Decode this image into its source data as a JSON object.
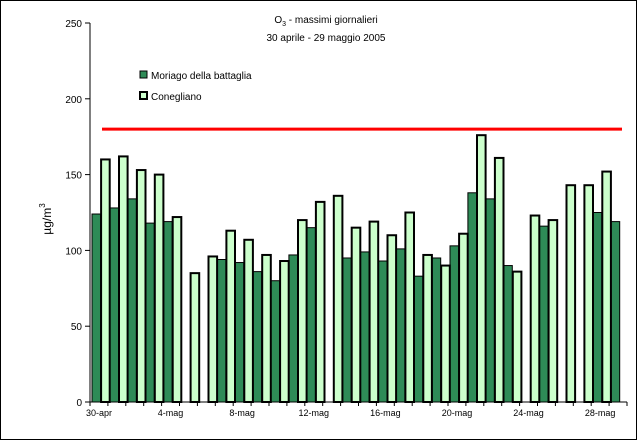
{
  "chart_data": {
    "type": "bar",
    "title_main": "O",
    "title_sub": "3",
    "title_rest": " - massimi giornalieri",
    "subtitle": "30 aprile - 29 maggio 2005",
    "ylabel_main": "µg/m",
    "ylabel_sup": "3",
    "ylim": [
      0,
      250
    ],
    "yticks": [
      "0",
      "50",
      "100",
      "150",
      "200",
      "250"
    ],
    "xtick_labels": [
      "30-apr",
      "4-mag",
      "8-mag",
      "12-mag",
      "16-mag",
      "20-mag",
      "24-mag",
      "28-mag"
    ],
    "categories": [
      "30-apr",
      "1-mag",
      "2-mag",
      "3-mag",
      "4-mag",
      "5-mag",
      "6-mag",
      "7-mag",
      "8-mag",
      "9-mag",
      "10-mag",
      "11-mag",
      "12-mag",
      "13-mag",
      "14-mag",
      "15-mag",
      "16-mag",
      "17-mag",
      "18-mag",
      "19-mag",
      "20-mag",
      "21-mag",
      "22-mag",
      "23-mag",
      "24-mag",
      "25-mag",
      "26-mag",
      "27-mag",
      "28-mag",
      "29-mag"
    ],
    "series": [
      {
        "name": "Moriago della battaglia",
        "color": "#2e8b57",
        "values": [
          124,
          128,
          134,
          118,
          119,
          null,
          null,
          94,
          92,
          86,
          80,
          97,
          115,
          null,
          95,
          99,
          93,
          101,
          83,
          95,
          103,
          138,
          134,
          90,
          null,
          116,
          null,
          null,
          125,
          119
        ]
      },
      {
        "name": "Conegliano",
        "color": "#ccffcc",
        "values": [
          160,
          162,
          153,
          150,
          122,
          85,
          96,
          113,
          107,
          97,
          93,
          120,
          132,
          136,
          115,
          119,
          110,
          125,
          97,
          90,
          111,
          176,
          161,
          86,
          123,
          120,
          143,
          143,
          152,
          null
        ]
      }
    ],
    "threshold": {
      "value": 180,
      "color": "#ff0000"
    },
    "legend_position": "top-left",
    "grid": false
  }
}
